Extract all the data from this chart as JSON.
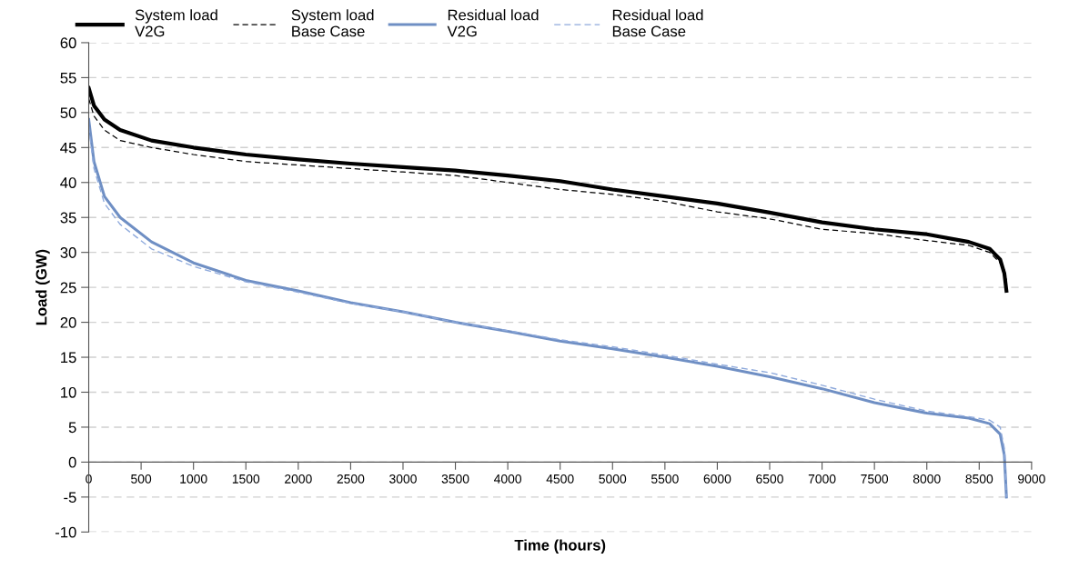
{
  "chart_data": {
    "type": "line",
    "xlabel": "Time (hours)",
    "ylabel": "Load (GW)",
    "xlim": [
      0,
      9000
    ],
    "ylim": [
      -10,
      60
    ],
    "xticks": [
      0,
      500,
      1000,
      1500,
      2000,
      2500,
      3000,
      3500,
      4000,
      4500,
      5000,
      5500,
      6000,
      6500,
      7000,
      7500,
      8000,
      8500,
      9000
    ],
    "yticks": [
      -10,
      -5,
      0,
      5,
      10,
      15,
      20,
      25,
      30,
      35,
      40,
      45,
      50,
      55,
      60
    ],
    "grid": "y",
    "legend": "top",
    "marker": "none",
    "x": [
      0,
      50,
      150,
      300,
      600,
      1000,
      1500,
      2000,
      2500,
      3000,
      3500,
      4000,
      4500,
      5000,
      5500,
      6000,
      6500,
      7000,
      7500,
      8000,
      8400,
      8600,
      8700,
      8740,
      8760
    ],
    "series": [
      {
        "name": "System load\nV2G",
        "color": "#000000",
        "line_style": "solid",
        "values": [
          53.5,
          51,
          49,
          47.5,
          46,
          45,
          44,
          43.3,
          42.7,
          42.2,
          41.7,
          41,
          40.2,
          39,
          38,
          37,
          35.7,
          34.3,
          33.3,
          32.6,
          31.5,
          30.5,
          29,
          27,
          24.5
        ]
      },
      {
        "name": "System load\nBase Case",
        "color": "#000000",
        "line_style": "dashed",
        "values": [
          52,
          49.5,
          47.5,
          46,
          45,
          44,
          43,
          42.5,
          42,
          41.5,
          41,
          40,
          39,
          38.3,
          37.3,
          35.8,
          34.8,
          33.3,
          32.7,
          31.7,
          31,
          30,
          28.5,
          27.5,
          26
        ]
      },
      {
        "name": "Residual load\nV2G",
        "color": "#6f8fc4",
        "line_style": "solid",
        "values": [
          49,
          43,
          38,
          35,
          31.5,
          28.5,
          26,
          24.5,
          22.8,
          21.5,
          20,
          18.7,
          17.3,
          16.2,
          15,
          13.7,
          12.2,
          10.5,
          8.5,
          7,
          6.3,
          5.5,
          4,
          1,
          -5
        ]
      },
      {
        "name": "Residual load\nBase Case",
        "color": "#8faadc",
        "line_style": "dashed",
        "values": [
          48,
          42,
          37,
          34,
          30.5,
          28,
          25.8,
          24.3,
          22.7,
          21.5,
          20,
          18.8,
          17.5,
          16.5,
          15.3,
          14,
          12.8,
          11,
          9,
          7.3,
          6.5,
          6,
          5,
          2,
          -5
        ]
      }
    ]
  }
}
